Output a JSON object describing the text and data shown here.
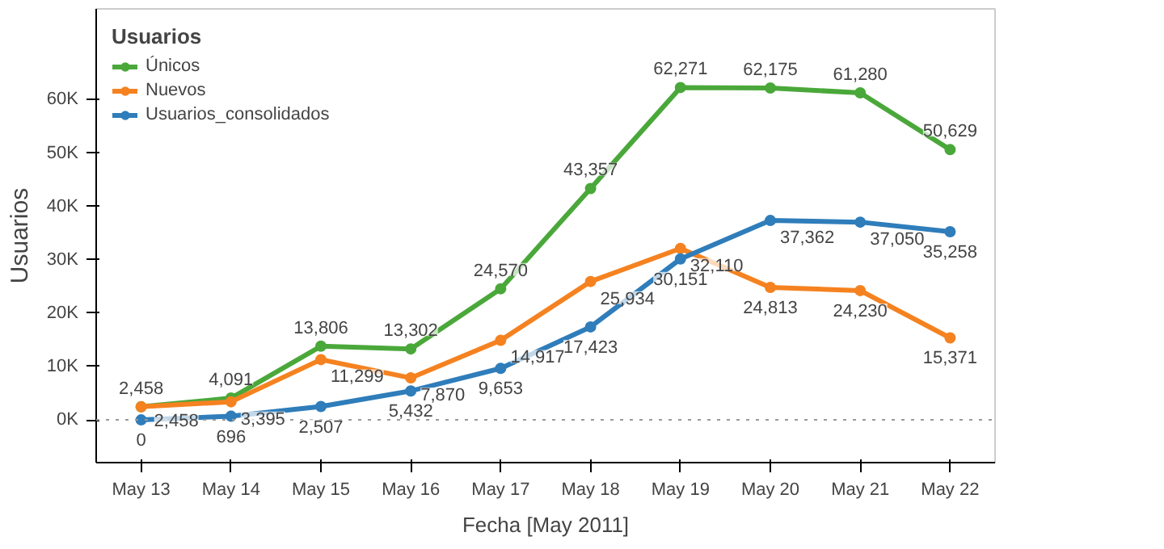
{
  "chart_data": {
    "type": "line",
    "xlabel": "Fecha [May 2011]",
    "ylabel": "Usuarios",
    "legend_title": "Usuarios",
    "categories": [
      "May 13",
      "May 14",
      "May 15",
      "May 16",
      "May 17",
      "May 18",
      "May 19",
      "May 20",
      "May 21",
      "May 22"
    ],
    "series": [
      {
        "name": "Únicos",
        "color": "#4aa83a",
        "values": [
          2458,
          4091,
          13806,
          13302,
          24570,
          43357,
          62271,
          62175,
          61280,
          50629
        ],
        "value_labels": [
          "2,458",
          "4,091",
          "13,806",
          "13,302",
          "24,570",
          "43,357",
          "62,271",
          "62,175",
          "61,280",
          "50,629"
        ]
      },
      {
        "name": "Nuevos",
        "color": "#f58220",
        "values": [
          2458,
          3395,
          11299,
          7870,
          14917,
          25934,
          32110,
          24813,
          24230,
          15371
        ],
        "value_labels": [
          "2,458",
          "3,395",
          "11,299",
          "7,870",
          "14,917",
          "25,934",
          "32,110",
          "24,813",
          "24,230",
          "15,371"
        ]
      },
      {
        "name": "Usuarios_consolidados",
        "color": "#2f7dba",
        "values": [
          0,
          696,
          2507,
          5432,
          9653,
          17423,
          30151,
          37362,
          37050,
          35258
        ],
        "value_labels": [
          "0",
          "696",
          "2,507",
          "5,432",
          "9,653",
          "17,423",
          "30,151",
          "37,362",
          "37,050",
          "35,258"
        ]
      }
    ],
    "ylim": [
      -8000,
      77000
    ],
    "yticks": [
      {
        "value": 0,
        "label": "0K"
      },
      {
        "value": 10000,
        "label": "10K"
      },
      {
        "value": 20000,
        "label": "20K"
      },
      {
        "value": 30000,
        "label": "30K"
      },
      {
        "value": 40000,
        "label": "40K"
      },
      {
        "value": 50000,
        "label": "50K"
      },
      {
        "value": 60000,
        "label": "60K"
      }
    ],
    "ref_lines": [
      {
        "axis": "y",
        "value": 0,
        "color": "#999999",
        "line_style": "dotted"
      }
    ],
    "grid": false,
    "legend": "top left",
    "marker": "circle",
    "line_style": "solid"
  }
}
